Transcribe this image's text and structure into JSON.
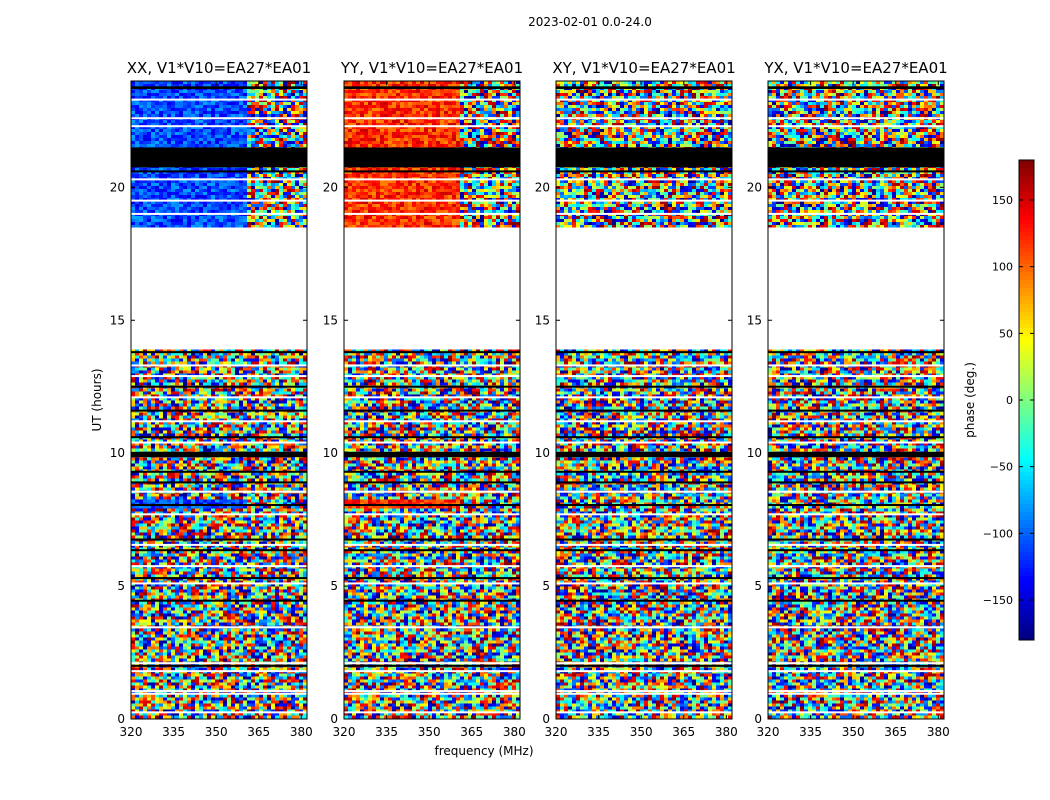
{
  "figure": {
    "suptitle": "2023-02-01 0.0-24.0"
  },
  "chart_data": {
    "type": "heatmap",
    "xlabel": "frequency (MHz)",
    "ylabel": "UT (hours)",
    "xlim": [
      320,
      382
    ],
    "ylim": [
      0,
      24
    ],
    "xticks": [
      "320",
      "335",
      "350",
      "365",
      "380"
    ],
    "yticks": [
      "0",
      "5",
      "10",
      "15",
      "20"
    ],
    "colormap": "jet",
    "colorbar": {
      "label": "phase (deg.)",
      "range": [
        -180,
        180
      ],
      "ticks": [
        "150",
        "100",
        "50",
        "0",
        "−50",
        "−100",
        "−150"
      ]
    },
    "data_ut_ranges": [
      [
        0.0,
        13.9
      ],
      [
        18.5,
        24.0
      ]
    ],
    "gap_ut_range": [
      13.9,
      18.5
    ],
    "masked_ut_ranges": [
      [
        9.85,
        10.05
      ],
      [
        20.75,
        21.5
      ],
      [
        23.7,
        23.8
      ]
    ],
    "panels": [
      {
        "title": "XX, V1*V10=EA27*EA01",
        "coherent_phase_deg": -110
      },
      {
        "title": "YY, V1*V10=EA27*EA01",
        "coherent_phase_deg": 120
      },
      {
        "title": "XY, V1*V10=EA27*EA01",
        "coherent_phase_deg": null
      },
      {
        "title": "YX, V1*V10=EA27*EA01",
        "coherent_phase_deg": null
      }
    ]
  }
}
